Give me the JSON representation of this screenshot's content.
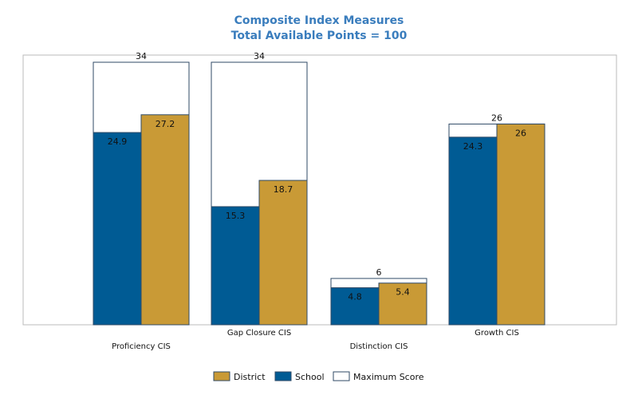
{
  "chart_data": {
    "type": "bar",
    "title": "Composite Index Measures",
    "subtitle": "Total Available Points = 100",
    "categories": [
      "Proficiency CIS",
      "Gap Closure CIS",
      "Distinction CIS",
      "Growth CIS"
    ],
    "series": [
      {
        "name": "School",
        "values": [
          24.9,
          15.3,
          4.8,
          24.3
        ]
      },
      {
        "name": "District",
        "values": [
          27.2,
          18.7,
          5.4,
          26
        ]
      },
      {
        "name": "Maximum Score",
        "values": [
          34,
          34,
          6,
          26
        ]
      }
    ],
    "ylim": [
      0,
      34
    ],
    "grid": false,
    "legend_position": "bottom",
    "colors": {
      "School": "#005b94",
      "District": "#c99a36",
      "Maximum Score": "#ffffff",
      "outline": "#2f4a66",
      "title": "#3a7dbd"
    }
  }
}
